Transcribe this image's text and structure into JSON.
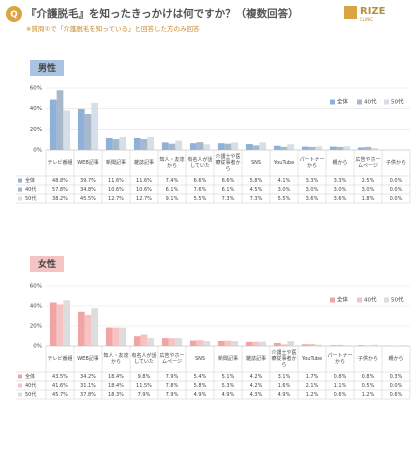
{
  "header": {
    "icon": "Q",
    "title": "『介護脱毛』を知ったきっかけは何ですか？（複数回答）",
    "subtitle": "※質問①で「介護脱毛を知っている」と回答した方のみ回答",
    "logo": "RIZE",
    "logo_sub": "CLINIC"
  },
  "chart_data": [
    {
      "type": "bar",
      "title": "男性",
      "title_color": "#a9c3e0",
      "ylim": [
        0,
        60
      ],
      "yticks": [
        {
          "value": 0,
          "label": "0%"
        },
        {
          "value": 20,
          "label": "20%"
        },
        {
          "value": 40,
          "label": "40%"
        },
        {
          "value": 60,
          "label": "60%"
        }
      ],
      "grid": true,
      "legend": "top-right",
      "categories": [
        "テレビ番組",
        "WEB記事",
        "新聞記事",
        "雑誌記事",
        "知人・友達から",
        "有名人が話していた",
        "介護士や医療従事者から",
        "SNS",
        "YouTube",
        "パートナーから",
        "親から",
        "広告やホームページ",
        "子供から"
      ],
      "series": [
        {
          "name": "全体",
          "color": "#8fb0d8",
          "values": [
            48.8,
            39.7,
            11.6,
            11.6,
            7.4,
            6.6,
            6.6,
            5.8,
            4.1,
            3.3,
            3.3,
            2.5,
            0.0
          ],
          "value_labels": [
            "48.8%",
            "39.7%",
            "11.6%",
            "11.6%",
            "7.4%",
            "6.6%",
            "6.6%",
            "5.8%",
            "4.1%",
            "3.3%",
            "3.3%",
            "2.5%",
            "0.0%"
          ]
        },
        {
          "name": "40代",
          "color": "#a7b8cb",
          "values": [
            57.8,
            34.8,
            10.6,
            10.6,
            6.1,
            7.6,
            6.1,
            4.5,
            3.0,
            3.0,
            3.0,
            3.0,
            0.0
          ],
          "value_labels": [
            "57.8%",
            "34.8%",
            "10.6%",
            "10.6%",
            "6.1%",
            "7.6%",
            "6.1%",
            "4.5%",
            "3.0%",
            "3.0%",
            "3.0%",
            "3.0%",
            "0.0%"
          ]
        },
        {
          "name": "50代",
          "color": "#d6dee8",
          "values": [
            38.2,
            45.5,
            12.7,
            12.7,
            9.1,
            5.5,
            7.3,
            7.3,
            5.5,
            3.6,
            3.6,
            1.8,
            0.0
          ],
          "value_labels": [
            "38.2%",
            "45.5%",
            "12.7%",
            "12.7%",
            "9.1%",
            "5.5%",
            "7.3%",
            "7.3%",
            "5.5%",
            "3.6%",
            "3.6%",
            "1.8%",
            "0.0%"
          ]
        }
      ]
    },
    {
      "type": "bar",
      "title": "女性",
      "title_color": "#f4c4c4",
      "ylim": [
        0,
        60
      ],
      "yticks": [
        {
          "value": 0,
          "label": "0%"
        },
        {
          "value": 20,
          "label": "20%"
        },
        {
          "value": 40,
          "label": "40%"
        },
        {
          "value": 60,
          "label": "60%"
        }
      ],
      "grid": true,
      "legend": "top-right",
      "categories": [
        "テレビ番組",
        "WEB記事",
        "知人・友達から",
        "有名人が話していた",
        "広告やホームページ",
        "SNS",
        "新聞記事",
        "雑誌記事",
        "介護士や医療従事者から",
        "YouTube",
        "パートナーから",
        "子供から",
        "親から"
      ],
      "series": [
        {
          "name": "全体",
          "color": "#f0a4a4",
          "values": [
            43.5,
            34.2,
            18.4,
            9.8,
            7.9,
            5.4,
            5.1,
            4.2,
            3.1,
            1.7,
            0.8,
            0.8,
            0.3
          ],
          "value_labels": [
            "43.5%",
            "34.2%",
            "18.4%",
            "9.8%",
            "7.9%",
            "5.4%",
            "5.1%",
            "4.2%",
            "3.1%",
            "1.7%",
            "0.8%",
            "0.8%",
            "0.3%"
          ]
        },
        {
          "name": "40代",
          "color": "#f6c2c2",
          "values": [
            41.6,
            31.1,
            18.4,
            11.5,
            7.8,
            5.8,
            5.3,
            4.2,
            1.6,
            2.1,
            1.1,
            0.5,
            0.0
          ],
          "value_labels": [
            "41.6%",
            "31.1%",
            "18.4%",
            "11.5%",
            "7.8%",
            "5.8%",
            "5.3%",
            "4.2%",
            "1.6%",
            "2.1%",
            "1.1%",
            "0.5%",
            "0.0%"
          ]
        },
        {
          "name": "50代",
          "color": "#dddddd",
          "values": [
            45.7,
            37.8,
            18.3,
            7.9,
            7.9,
            4.9,
            4.9,
            4.3,
            4.9,
            1.2,
            0.6,
            1.2,
            0.6
          ],
          "value_labels": [
            "45.7%",
            "37.8%",
            "18.3%",
            "7.9%",
            "7.9%",
            "4.9%",
            "4.9%",
            "4.3%",
            "4.9%",
            "1.2%",
            "0.6%",
            "1.2%",
            "0.6%"
          ]
        }
      ]
    }
  ]
}
